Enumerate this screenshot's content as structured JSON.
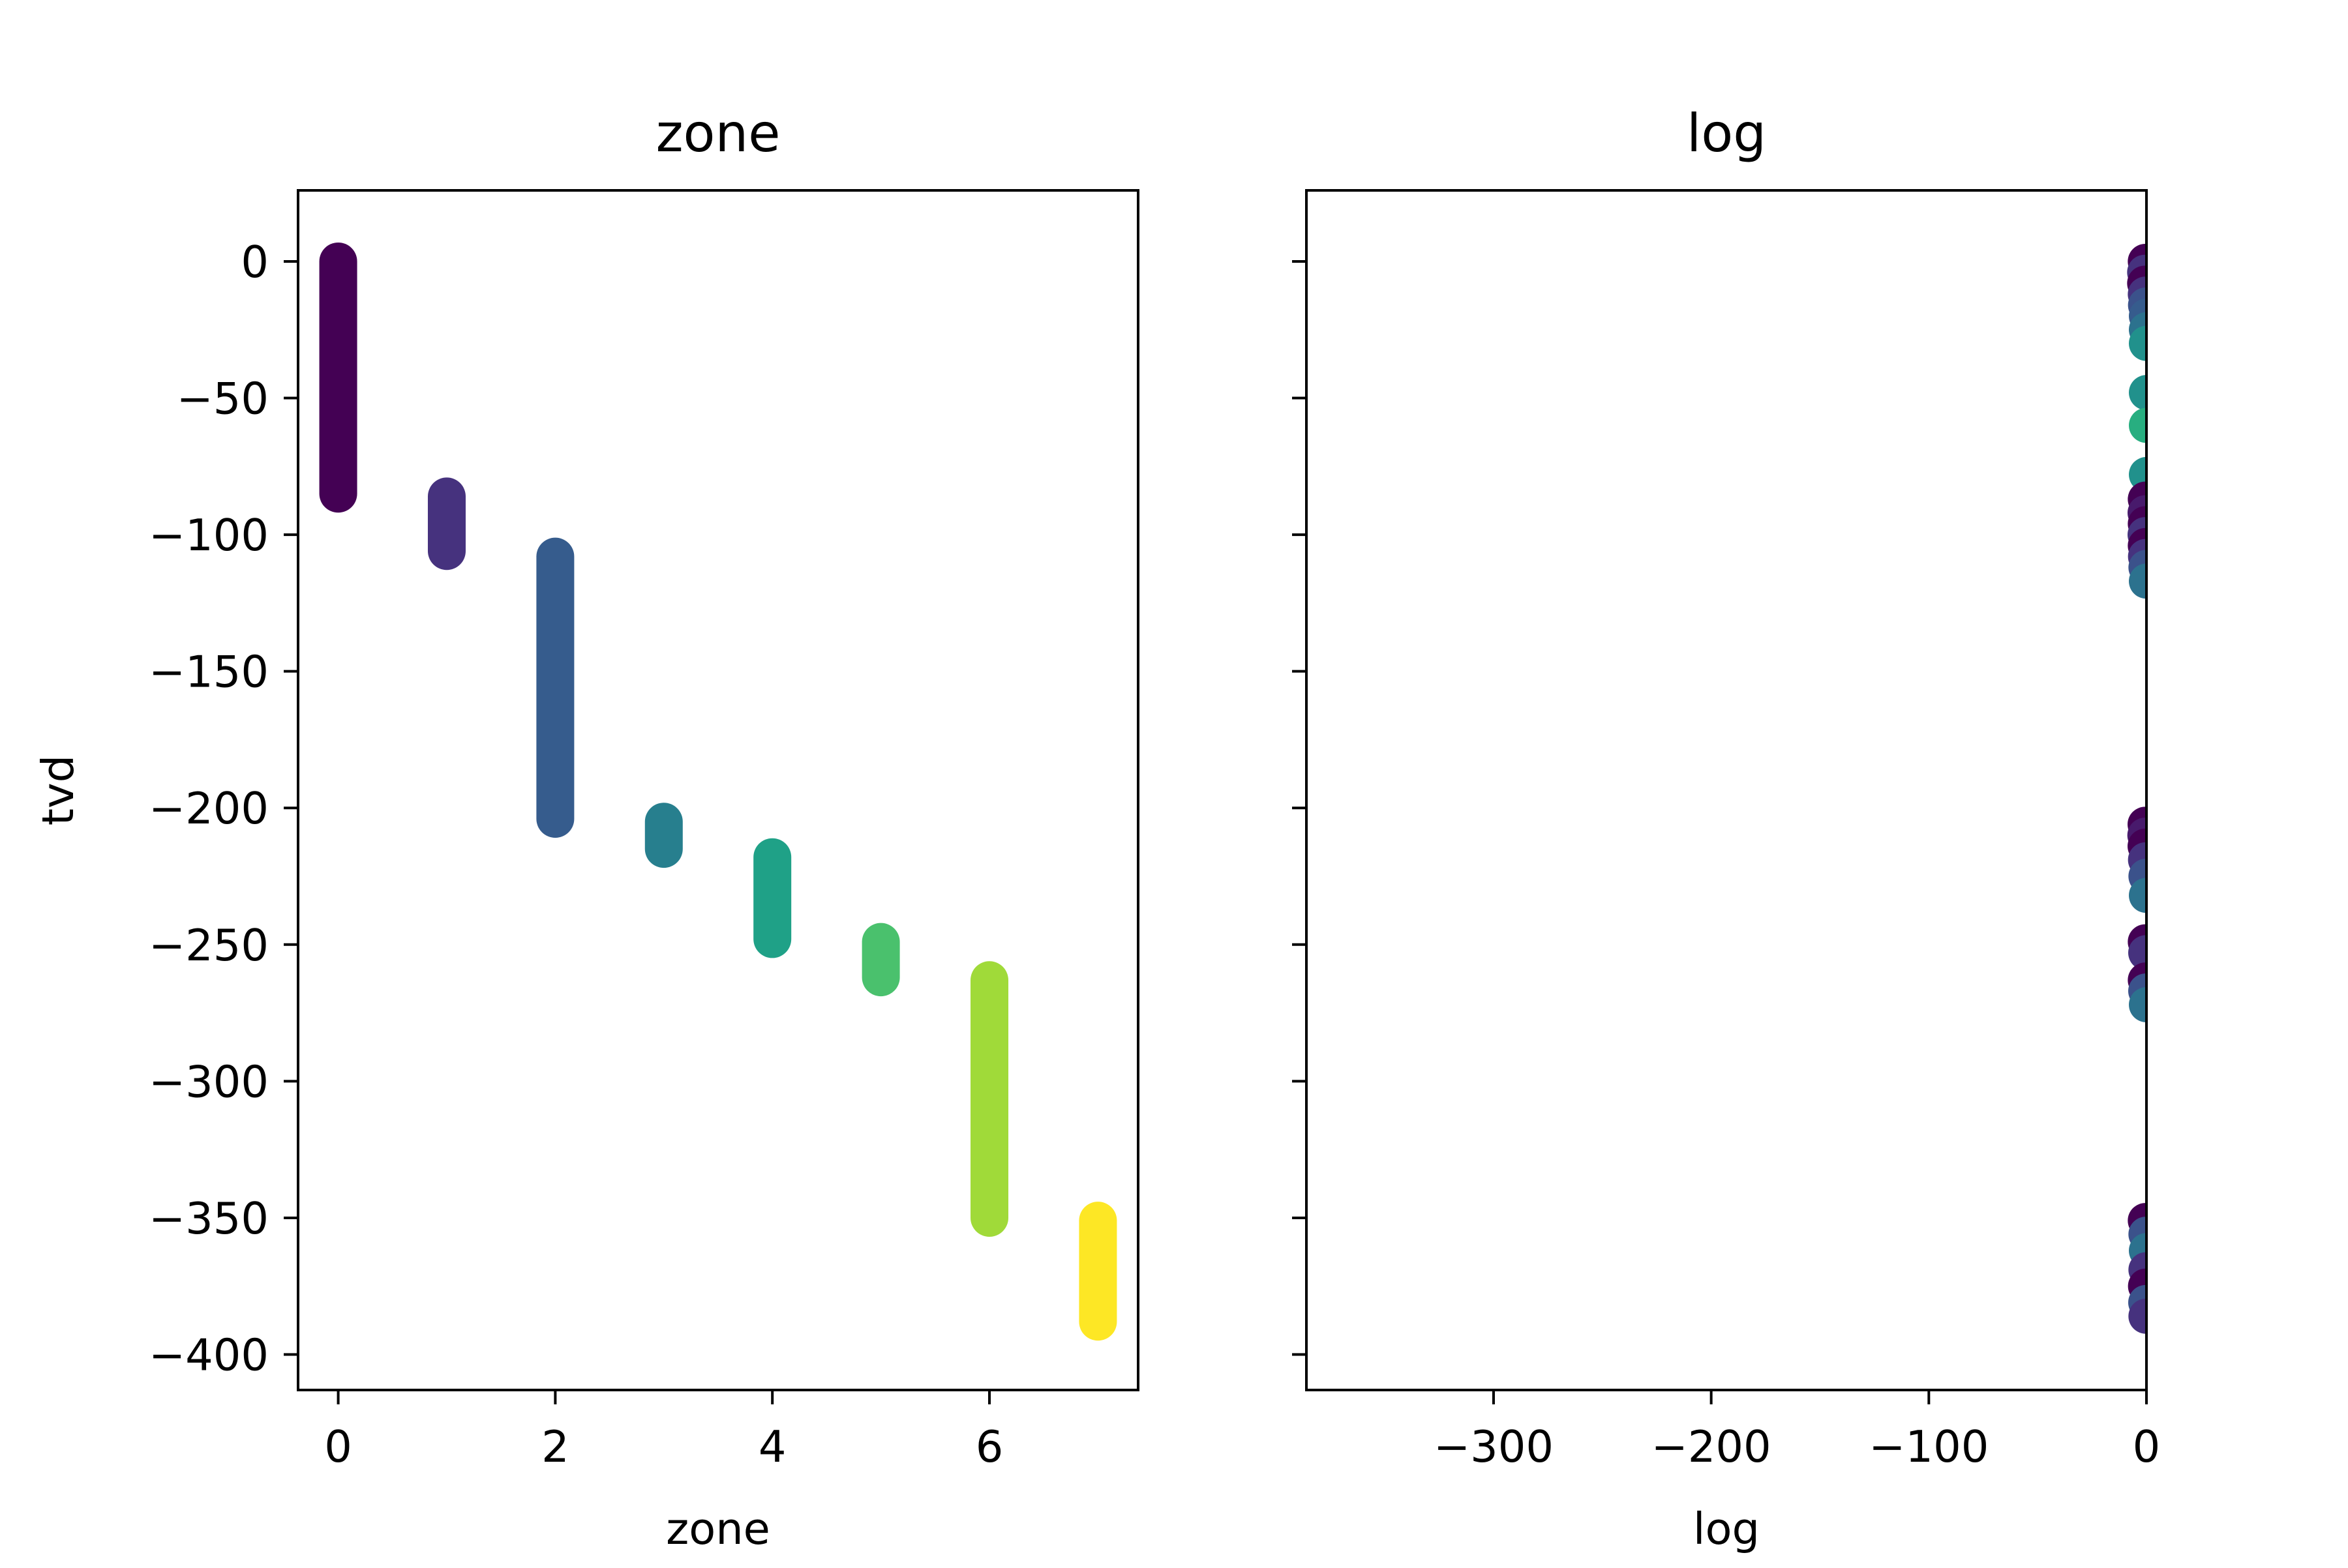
{
  "chart_data": [
    {
      "type": "scatter",
      "title": "zone",
      "xlabel": "zone",
      "ylabel": "tvd",
      "xlim": [
        -0.37,
        7.37
      ],
      "ylim": [
        -413,
        26
      ],
      "xticks": [
        0,
        2,
        4,
        6
      ],
      "yticks": [
        0,
        -50,
        -100,
        -150,
        -200,
        -250,
        -300,
        -350,
        -400
      ],
      "colormap": "viridis",
      "series": [
        {
          "zone": 0,
          "color": "#440154",
          "tvd_top": 0,
          "tvd_bottom": -85
        },
        {
          "zone": 1,
          "color": "#46327e",
          "tvd_top": -86,
          "tvd_bottom": -106
        },
        {
          "zone": 2,
          "color": "#365c8d",
          "tvd_top": -108,
          "tvd_bottom": -204
        },
        {
          "zone": 3,
          "color": "#277f8e",
          "tvd_top": -205,
          "tvd_bottom": -215
        },
        {
          "zone": 4,
          "color": "#1fa187",
          "tvd_top": -218,
          "tvd_bottom": -248
        },
        {
          "zone": 5,
          "color": "#4ac16d",
          "tvd_top": -249,
          "tvd_bottom": -262
        },
        {
          "zone": 6,
          "color": "#a0da39",
          "tvd_top": -263,
          "tvd_bottom": -350
        },
        {
          "zone": 7,
          "color": "#fde725",
          "tvd_top": -351,
          "tvd_bottom": -388
        }
      ]
    },
    {
      "type": "scatter",
      "title": "log",
      "xlabel": "log",
      "ylabel": "",
      "xlim": [
        -386,
        0
      ],
      "ylim": [
        -413,
        26
      ],
      "xticks": [
        -300,
        -200,
        -100,
        0
      ],
      "yticks": [
        0,
        -50,
        -100,
        -150,
        -200,
        -250,
        -300,
        -350,
        -400
      ],
      "ytick_labels_shown": false,
      "colormap": "viridis",
      "points": [
        {
          "log": -0.5,
          "tvd": 0,
          "color": "#440154"
        },
        {
          "log": -0.8,
          "tvd": -4,
          "color": "#46327e"
        },
        {
          "log": -0.8,
          "tvd": -8,
          "color": "#440154"
        },
        {
          "log": -0.5,
          "tvd": -12,
          "color": "#46327e"
        },
        {
          "log": -0.4,
          "tvd": -16,
          "color": "#3b528b"
        },
        {
          "log": 0,
          "tvd": -20,
          "color": "#365c8d"
        },
        {
          "log": 0,
          "tvd": -25,
          "color": "#2c728e"
        },
        {
          "log": 0,
          "tvd": -30,
          "color": "#21918c"
        },
        {
          "log": 0,
          "tvd": -48,
          "color": "#21918c"
        },
        {
          "log": 0,
          "tvd": -60,
          "color": "#28ae80"
        },
        {
          "log": 0,
          "tvd": -78,
          "color": "#21918c"
        },
        {
          "log": -0.5,
          "tvd": -87,
          "color": "#440154"
        },
        {
          "log": -0.6,
          "tvd": -92,
          "color": "#481a6c"
        },
        {
          "log": -0.5,
          "tvd": -96,
          "color": "#440154"
        },
        {
          "log": -0.6,
          "tvd": -100,
          "color": "#46327e"
        },
        {
          "log": -0.5,
          "tvd": -104,
          "color": "#440154"
        },
        {
          "log": -0.4,
          "tvd": -108,
          "color": "#46327e"
        },
        {
          "log": -0.2,
          "tvd": -112,
          "color": "#3b528b"
        },
        {
          "log": 0,
          "tvd": -117,
          "color": "#2c728e"
        },
        {
          "log": -0.6,
          "tvd": -206,
          "color": "#440154"
        },
        {
          "log": -0.7,
          "tvd": -210,
          "color": "#481a6c"
        },
        {
          "log": -0.6,
          "tvd": -214,
          "color": "#440154"
        },
        {
          "log": -0.4,
          "tvd": -219,
          "color": "#46327e"
        },
        {
          "log": -0.2,
          "tvd": -225,
          "color": "#3b528b"
        },
        {
          "log": 0,
          "tvd": -232,
          "color": "#2c728e"
        },
        {
          "log": -0.5,
          "tvd": -249,
          "color": "#440154"
        },
        {
          "log": -0.3,
          "tvd": -253,
          "color": "#46327e"
        },
        {
          "log": -0.5,
          "tvd": -263,
          "color": "#440154"
        },
        {
          "log": -0.3,
          "tvd": -267,
          "color": "#3b528b"
        },
        {
          "log": 0,
          "tvd": -272,
          "color": "#2c728e"
        },
        {
          "log": -0.5,
          "tvd": -351,
          "color": "#440154"
        },
        {
          "log": -0.2,
          "tvd": -356,
          "color": "#3b528b"
        },
        {
          "log": 0,
          "tvd": -362,
          "color": "#2c728e"
        },
        {
          "log": -0.2,
          "tvd": -369,
          "color": "#46327e"
        },
        {
          "log": -0.4,
          "tvd": -375,
          "color": "#440154"
        },
        {
          "log": -0.3,
          "tvd": -381,
          "color": "#3b528b"
        },
        {
          "log": -0.2,
          "tvd": -386,
          "color": "#46327e"
        }
      ]
    }
  ]
}
